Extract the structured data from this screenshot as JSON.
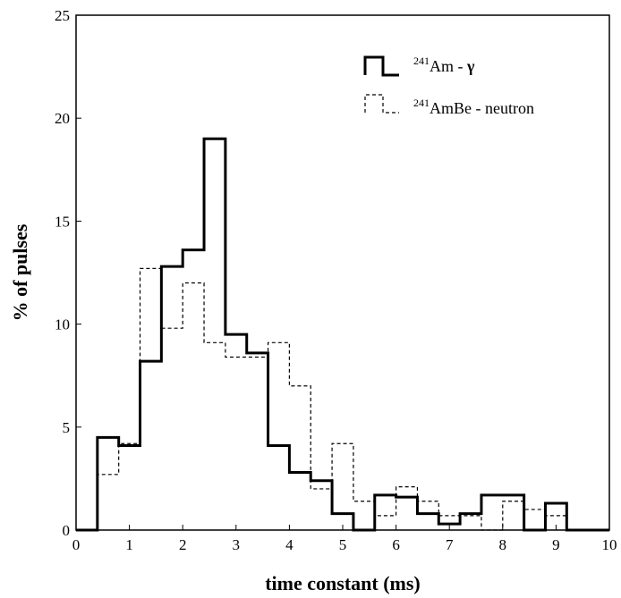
{
  "chart_data": {
    "type": "histogram",
    "xlabel": "time constant (ms)",
    "ylabel": "% of pulses",
    "xlim": [
      0,
      10
    ],
    "ylim": [
      0,
      25
    ],
    "xticks": [
      "0",
      "1",
      "2",
      "3",
      "4",
      "5",
      "6",
      "7",
      "8",
      "9",
      "10"
    ],
    "yticks": [
      "0",
      "5",
      "10",
      "15",
      "20",
      "25"
    ],
    "bin_edges": [
      0,
      0.4,
      0.8,
      1.2,
      1.6,
      2.0,
      2.4,
      2.8,
      3.2,
      3.6,
      4.0,
      4.4,
      4.8,
      5.2,
      5.6,
      6.0,
      6.4,
      6.8,
      7.2,
      7.6,
      8.0,
      8.4,
      8.8,
      9.2,
      9.6,
      10.0
    ],
    "series": [
      {
        "name_sup": "241",
        "name_main": "Am - ",
        "name_symbol": "γ",
        "style": "solid",
        "color": "#000000",
        "values": [
          0,
          4.5,
          4.1,
          8.2,
          12.8,
          13.6,
          19.0,
          9.5,
          8.6,
          4.1,
          2.8,
          2.4,
          0.8,
          0,
          1.7,
          1.6,
          0.8,
          0.3,
          0.8,
          1.7,
          1.7,
          0,
          1.3,
          0,
          0
        ]
      },
      {
        "name_sup": "241",
        "name_main": "AmBe - neutron",
        "name_symbol": "",
        "style": "dashed",
        "color": "#000000",
        "values": [
          0,
          2.7,
          4.2,
          12.7,
          9.8,
          12.0,
          9.1,
          8.4,
          8.4,
          9.1,
          7.0,
          2.0,
          4.2,
          1.4,
          0.7,
          2.1,
          1.4,
          0.7,
          0.7,
          0,
          1.4,
          1.0,
          0.7,
          0,
          0
        ]
      }
    ],
    "legend_position": "top-right",
    "grid": false
  }
}
